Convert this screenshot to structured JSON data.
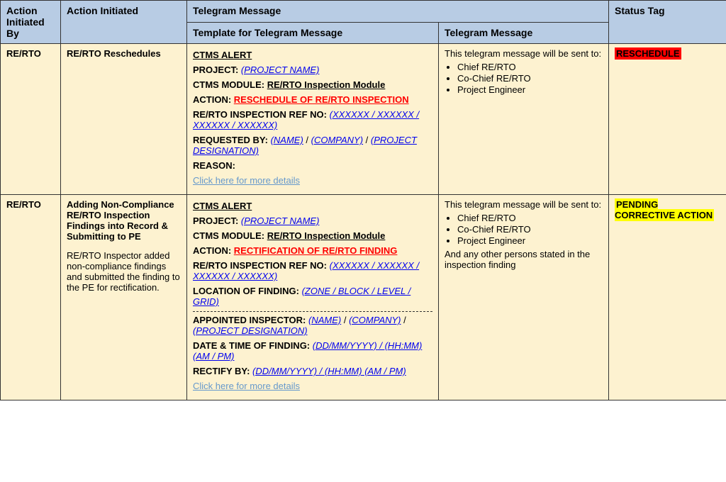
{
  "headers": {
    "initiated_by": "Action Initiated By",
    "initiated": "Action Initiated",
    "telegram_group": "Telegram Message",
    "template": "Template for Telegram Message",
    "message": "Telegram Message",
    "status_tag": "Status Tag"
  },
  "rows": [
    {
      "initiated_by": "RE/RTO",
      "initiated_title": "RE/RTO Reschedules",
      "initiated_desc": "",
      "template": {
        "title": "CTMS ALERT",
        "project_label": "PROJECT:",
        "project_ph": "(PROJECT NAME)",
        "module_label": "CTMS MODULE:",
        "module_val": "RE/RTO Inspection Module",
        "action_label": "ACTION:",
        "action_val": "RESCHEDULE OF RE/RTO INSPECTION",
        "ref_label": "RE/RTO INSPECTION REF NO:",
        "ref_ph": "(XXXXXX / XXXXXX / XXXXXX / XXXXXX)",
        "req_label": "REQUESTED BY:",
        "req_ph1": "(NAME)",
        "req_sep1": " / ",
        "req_ph2": "(COMPANY)",
        "req_sep2": " / ",
        "req_ph3": "(PROJECT DESIGNATION)",
        "reason_label": "REASON:",
        "link": "Click here for more details"
      },
      "message": {
        "intro": "This telegram message will be sent to:",
        "recips": [
          "Chief RE/RTO",
          "Co-Chief RE/RTO",
          "Project Engineer"
        ],
        "footer": ""
      },
      "tag": {
        "text": "RESCHEDULE",
        "cls": "tag-red"
      }
    },
    {
      "initiated_by": "RE/RTO",
      "initiated_title": "Adding Non-Compliance RE/RTO Inspection Findings into Record & Submitting to PE",
      "initiated_desc": "RE/RTO Inspector added non-compliance findings and submitted the finding to the PE for rectification.",
      "template": {
        "title": "CTMS ALERT",
        "project_label": "PROJECT:",
        "project_ph": "(PROJECT NAME)",
        "module_label": "CTMS MODULE:",
        "module_val": "RE/RTO Inspection Module",
        "action_label": "ACTION:",
        "action_val": "RECTIFICATION OF RE/RTO FINDING",
        "ref_label": "RE/RTO INSPECTION REF NO:",
        "ref_ph": "(XXXXXX / XXXXXX / XXXXXX / XXXXXX)",
        "loc_label": "LOCATION OF FINDING:",
        "loc_ph": "(ZONE / BLOCK / LEVEL / GRID)",
        "insp_label": "APPOINTED INSPECTOR:",
        "insp_ph1": "(NAME)",
        "insp_sep1": " / ",
        "insp_ph2": "(COMPANY)",
        "insp_sep2": " / ",
        "insp_ph3": "(PROJECT DESIGNATION)",
        "dt_label": "DATE & TIME OF FINDING:",
        "dt_ph": "(DD/MM/YYYY) / (HH:MM) (AM / PM)",
        "rect_label": "RECTIFY BY:",
        "rect_ph": "(DD/MM/YYYY) / (HH:MM) (AM / PM)",
        "link": "Click here for more details"
      },
      "message": {
        "intro": "This telegram message will be sent to:",
        "recips": [
          "Chief RE/RTO",
          "Co-Chief RE/RTO",
          "Project Engineer"
        ],
        "footer": "And any other persons stated in the inspection finding"
      },
      "tag": {
        "text": "PENDING CORRECTIVE ACTION",
        "cls": "tag-yellow"
      }
    }
  ]
}
